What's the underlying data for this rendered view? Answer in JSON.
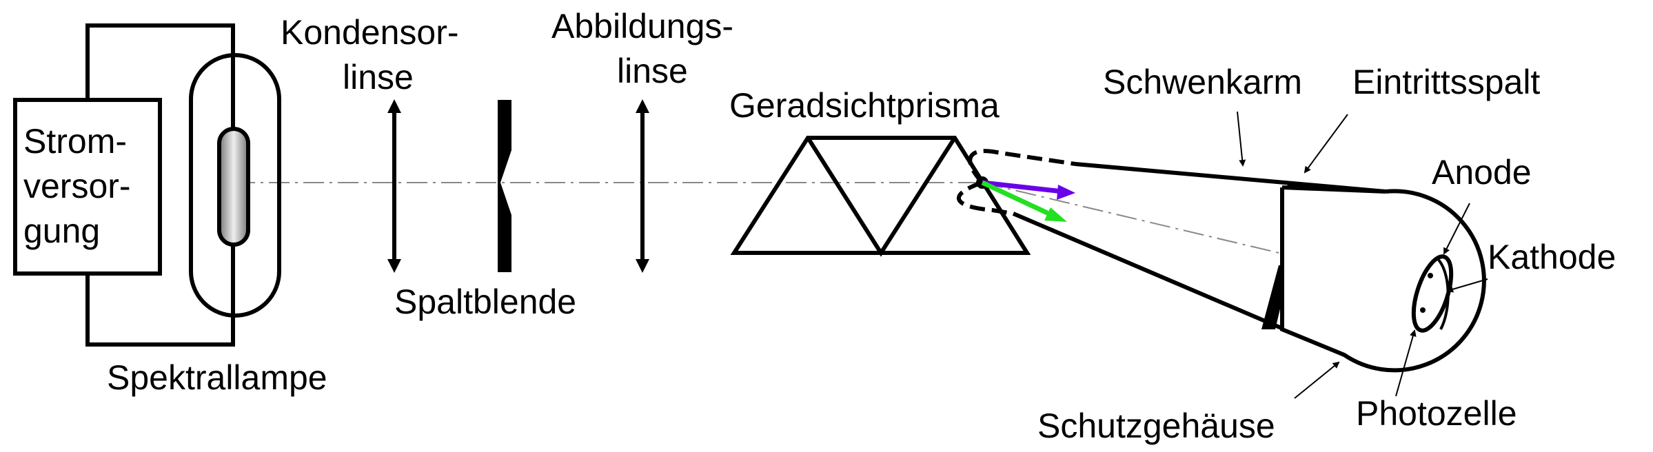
{
  "labels": {
    "power_supply": [
      "Strom-",
      "versor-",
      "gung"
    ],
    "condenser_lens": [
      "Kondensor-",
      "linse"
    ],
    "imaging_lens": [
      "Abbildungs-",
      "linse"
    ],
    "slit_aperture": "Spaltblende",
    "spectral_lamp": "Spektrallampe",
    "prism": "Geradsichtprisma",
    "swivel_arm": "Schwenkarm",
    "entrance_slit": "Eintrittsspalt",
    "anode": "Anode",
    "cathode": "Kathode",
    "protective_housing": "Schutzgehäuse",
    "photocell": "Photozelle"
  },
  "colors": {
    "line": "#000000",
    "optical_axis": "#777777",
    "violet_ray": "#6a00e8",
    "green_ray": "#22e022",
    "lamp_glow": "#dddddd"
  }
}
